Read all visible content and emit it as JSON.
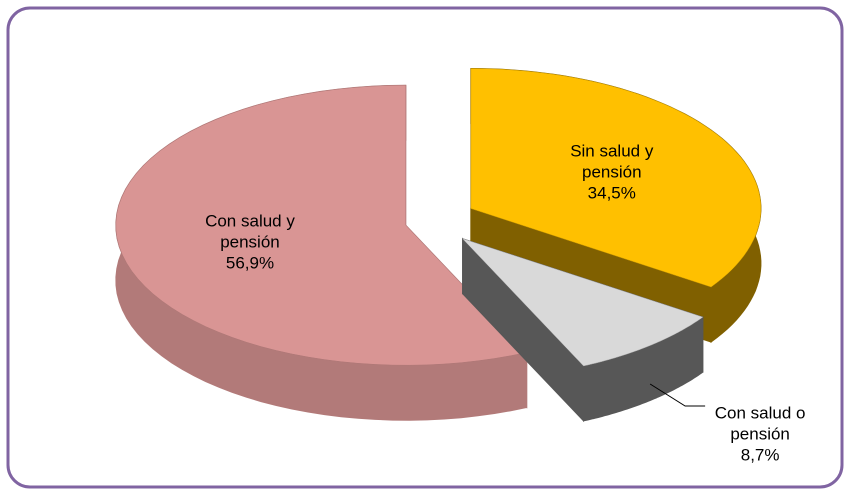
{
  "chart_data": {
    "type": "pie",
    "categories": [
      "Sin salud y pensión",
      "Con salud o pensión",
      "Con salud y pensión"
    ],
    "values": [
      34.5,
      8.7,
      56.9
    ],
    "value_labels": [
      "34,5%",
      "8,7%",
      "56,9%"
    ],
    "colors": [
      "#ffc000",
      "#d9d9d9",
      "#d99594"
    ],
    "explode": true
  }
}
